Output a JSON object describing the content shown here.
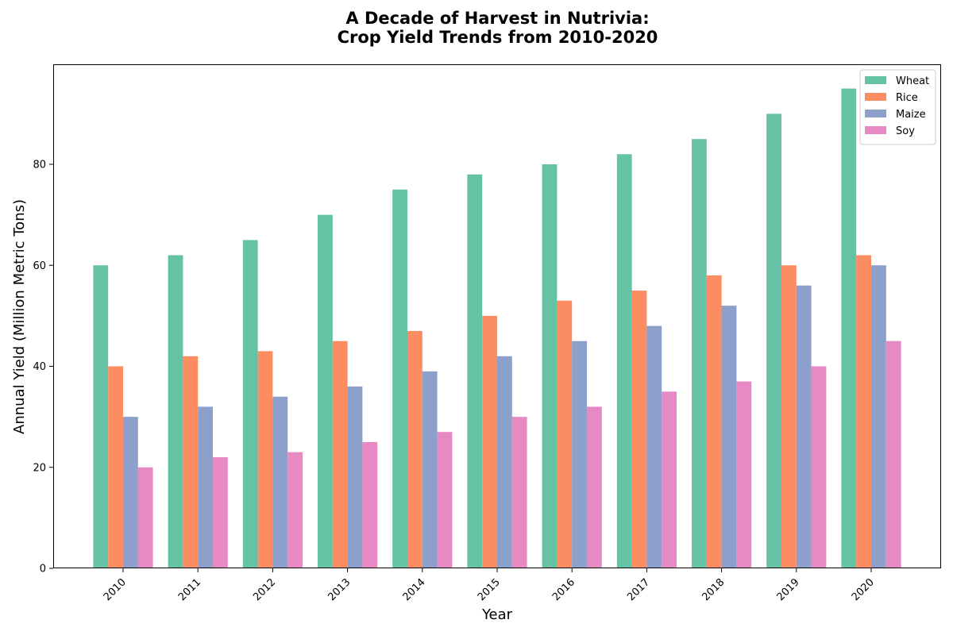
{
  "chart_data": {
    "type": "bar",
    "title_line1": "A Decade of Harvest in Nutrivia:",
    "title_line2": "Crop Yield Trends from 2010-2020",
    "xlabel": "Year",
    "ylabel": "Annual Yield (Million Metric Tons)",
    "categories": [
      "2010",
      "2011",
      "2012",
      "2013",
      "2014",
      "2015",
      "2016",
      "2017",
      "2018",
      "2019",
      "2020"
    ],
    "yticks": [
      0,
      20,
      40,
      60,
      80
    ],
    "ylim": [
      0,
      100
    ],
    "legend_position": "top-right",
    "grid": false,
    "series": [
      {
        "name": "Wheat",
        "color": "#66c2a5",
        "values": [
          60,
          62,
          65,
          70,
          75,
          78,
          80,
          82,
          85,
          90,
          95
        ]
      },
      {
        "name": "Rice",
        "color": "#fc8d62",
        "values": [
          40,
          42,
          43,
          45,
          47,
          50,
          53,
          55,
          58,
          60,
          62
        ]
      },
      {
        "name": "Maize",
        "color": "#8da0cb",
        "values": [
          30,
          32,
          34,
          36,
          39,
          42,
          45,
          48,
          52,
          56,
          60
        ]
      },
      {
        "name": "Soy",
        "color": "#e78ac3",
        "values": [
          20,
          22,
          23,
          25,
          27,
          30,
          32,
          35,
          37,
          40,
          45
        ]
      }
    ]
  }
}
